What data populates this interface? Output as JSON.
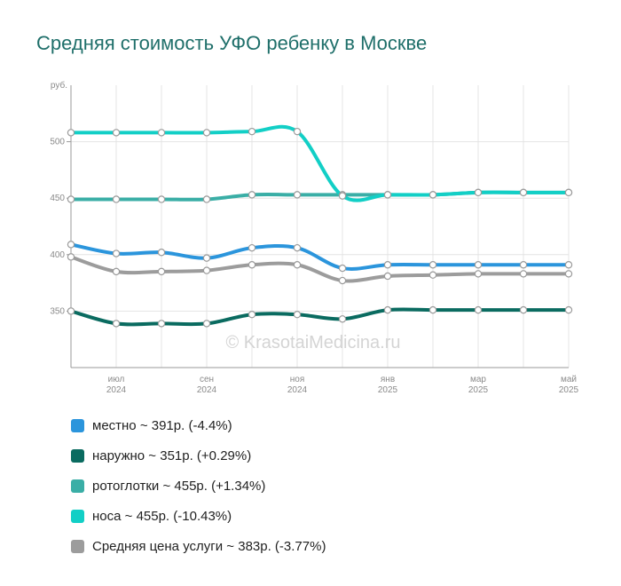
{
  "title": "Средняя стоимость УФО ребенку в Москве",
  "watermark": "© KrasotaiMedicina.ru",
  "chart_data": {
    "type": "line",
    "unit_label": "руб.",
    "y_ticks": [
      "350",
      "400",
      "450",
      "500"
    ],
    "ylim": [
      300,
      550
    ],
    "x_ticks": [
      {
        "month": "июл",
        "year": "2024"
      },
      {
        "month": "сен",
        "year": "2024"
      },
      {
        "month": "ноя",
        "year": "2024"
      },
      {
        "month": "янв",
        "year": "2025"
      },
      {
        "month": "мар",
        "year": "2025"
      },
      {
        "month": "май",
        "year": "2025"
      }
    ],
    "x": [
      "2024-06",
      "2024-07",
      "2024-08",
      "2024-09",
      "2024-10",
      "2024-11",
      "2024-12",
      "2025-01",
      "2025-02",
      "2025-03",
      "2025-04",
      "2025-05"
    ],
    "grid": true,
    "legend_position": "bottom",
    "series": [
      {
        "name": "местно ~ 391р. (-4.4%)",
        "color": "#2b95dc",
        "values": [
          409,
          401,
          402,
          397,
          406,
          406,
          388,
          391,
          391,
          391,
          391,
          391
        ]
      },
      {
        "name": "наружно ~ 351р. (+0.29%)",
        "color": "#0a6b60",
        "values": [
          350,
          339,
          339,
          339,
          347,
          347,
          343,
          351,
          351,
          351,
          351,
          351
        ]
      },
      {
        "name": "ротоглотки ~ 455р. (+1.34%)",
        "color": "#3aaea6",
        "values": [
          449,
          449,
          449,
          449,
          453,
          453,
          453,
          453,
          453,
          455,
          455,
          455
        ]
      },
      {
        "name": "носа ~ 455р. (-10.43%)",
        "color": "#12cfc6",
        "values": [
          508,
          508,
          508,
          508,
          509,
          509,
          452,
          453,
          453,
          455,
          455,
          455
        ]
      },
      {
        "name": "Средняя цена услуги ~ 383р. (-3.77%)",
        "color": "#9c9c9c",
        "values": [
          398,
          385,
          385,
          386,
          391,
          391,
          377,
          381,
          382,
          383,
          383,
          383
        ]
      }
    ]
  }
}
